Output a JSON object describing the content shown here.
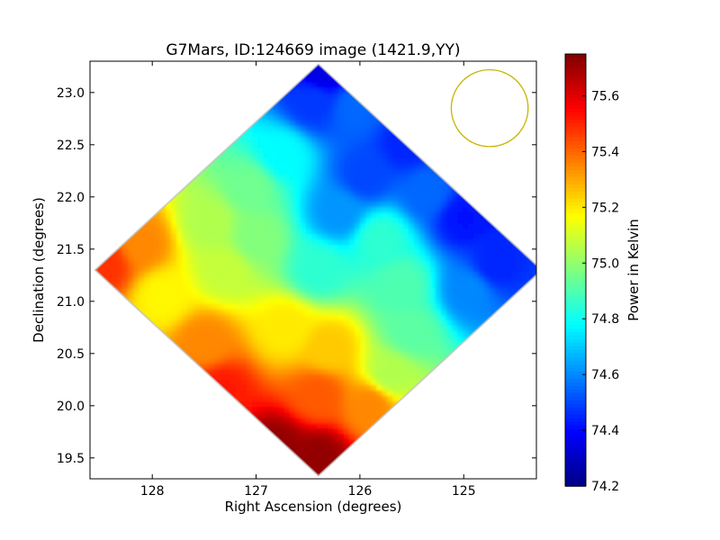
{
  "chart_data": {
    "type": "heatmap",
    "title": "G7Mars, ID:124669 image (1421.9,YY)",
    "xlabel": "Right Ascension (degrees)",
    "ylabel": "Declination (degrees)",
    "xlim": [
      128.6,
      124.3
    ],
    "ylim": [
      19.3,
      23.3
    ],
    "x_ticks": [
      128,
      127,
      126,
      125
    ],
    "x_tick_labels": [
      "128",
      "127",
      "126",
      "125"
    ],
    "y_ticks": [
      19.5,
      20.0,
      20.5,
      21.0,
      21.5,
      22.0,
      22.5,
      23.0
    ],
    "y_tick_labels": [
      "19.5",
      "20.0",
      "20.5",
      "21.0",
      "21.5",
      "22.0",
      "22.5",
      "23.0"
    ],
    "colorbar": {
      "label": "Power in Kelvin",
      "range": [
        74.2,
        75.75
      ],
      "ticks": [
        74.2,
        74.4,
        74.6,
        74.8,
        75.0,
        75.2,
        75.4,
        75.6
      ],
      "tick_labels": [
        "74.2",
        "74.4",
        "74.6",
        "74.8",
        "75.0",
        "75.2",
        "75.4",
        "75.6"
      ],
      "colormap": "jet"
    },
    "footprint": {
      "shape": "diamond",
      "center_ra": 126.4,
      "center_dec": 21.3,
      "ra_half_width": 2.15,
      "dec_half_height": 1.97
    },
    "samples": [
      {
        "ra": 128.45,
        "dec": 21.35,
        "value": 75.48
      },
      {
        "ra": 128.1,
        "dec": 21.55,
        "value": 75.35
      },
      {
        "ra": 127.9,
        "dec": 21.05,
        "value": 75.18
      },
      {
        "ra": 127.5,
        "dec": 20.6,
        "value": 75.35
      },
      {
        "ra": 127.35,
        "dec": 20.15,
        "value": 75.52
      },
      {
        "ra": 126.8,
        "dec": 19.6,
        "value": 75.72
      },
      {
        "ra": 126.4,
        "dec": 19.5,
        "value": 75.72
      },
      {
        "ra": 126.4,
        "dec": 20.1,
        "value": 75.42
      },
      {
        "ra": 125.9,
        "dec": 20.0,
        "value": 75.35
      },
      {
        "ra": 126.3,
        "dec": 20.55,
        "value": 75.25
      },
      {
        "ra": 126.7,
        "dec": 20.75,
        "value": 75.2
      },
      {
        "ra": 127.3,
        "dec": 21.3,
        "value": 75.08
      },
      {
        "ra": 127.45,
        "dec": 21.75,
        "value": 75.05
      },
      {
        "ra": 127.05,
        "dec": 22.1,
        "value": 74.95
      },
      {
        "ra": 127.0,
        "dec": 21.6,
        "value": 74.98
      },
      {
        "ra": 126.75,
        "dec": 22.4,
        "value": 74.78
      },
      {
        "ra": 126.45,
        "dec": 22.9,
        "value": 74.48
      },
      {
        "ra": 126.35,
        "dec": 23.2,
        "value": 74.35
      },
      {
        "ra": 126.05,
        "dec": 22.85,
        "value": 74.55
      },
      {
        "ra": 125.95,
        "dec": 22.2,
        "value": 74.5
      },
      {
        "ra": 126.2,
        "dec": 21.85,
        "value": 74.62
      },
      {
        "ra": 125.8,
        "dec": 21.6,
        "value": 74.85
      },
      {
        "ra": 125.6,
        "dec": 21.15,
        "value": 74.9
      },
      {
        "ra": 125.5,
        "dec": 20.7,
        "value": 74.92
      },
      {
        "ra": 125.7,
        "dec": 20.3,
        "value": 75.05
      },
      {
        "ra": 125.35,
        "dec": 22.05,
        "value": 74.55
      },
      {
        "ra": 125.55,
        "dec": 22.5,
        "value": 74.45
      },
      {
        "ra": 125.0,
        "dec": 21.8,
        "value": 74.42
      },
      {
        "ra": 124.7,
        "dec": 21.35,
        "value": 74.45
      },
      {
        "ra": 124.95,
        "dec": 21.1,
        "value": 74.6
      },
      {
        "ra": 126.4,
        "dec": 21.3,
        "value": 74.85
      }
    ],
    "beam_circle": {
      "ra": 124.75,
      "dec": 22.85,
      "radius_deg": 0.37,
      "color": "#c8b400"
    }
  }
}
